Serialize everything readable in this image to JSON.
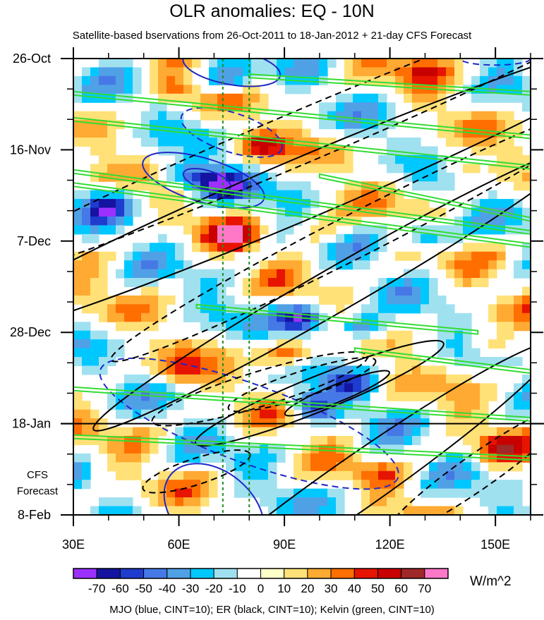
{
  "chart_data": {
    "type": "heatmap",
    "title": "OLR anomalies: EQ - 10N",
    "subtitle": "Satellite-based bservations from 26-Oct-2011 to 18-Jan-2012 + 21-day CFS Forecast",
    "x_axis": {
      "range": [
        30,
        160
      ],
      "ticks": [
        {
          "value": 30,
          "label": "30E"
        },
        {
          "value": 60,
          "label": "60E"
        },
        {
          "value": 90,
          "label": "90E"
        },
        {
          "value": 120,
          "label": "120E"
        },
        {
          "value": 150,
          "label": "150E"
        }
      ],
      "minor_ticks": [
        40,
        50,
        70,
        80,
        100,
        110,
        130,
        140,
        160
      ]
    },
    "y_axis": {
      "range_days": [
        0,
        105
      ],
      "direction": "down",
      "ticks": [
        {
          "day": 0,
          "label": "26-Oct"
        },
        {
          "day": 21,
          "label": "16-Nov"
        },
        {
          "day": 42,
          "label": "7-Dec"
        },
        {
          "day": 63,
          "label": "28-Dec"
        },
        {
          "day": 84,
          "label": "18-Jan"
        },
        {
          "day": 105,
          "label": "8-Feb"
        }
      ],
      "minor_ticks": [
        7,
        14,
        28,
        35,
        49,
        56,
        70,
        77,
        91,
        98
      ]
    },
    "observation_end_day": 84,
    "forecast_label": [
      "CFS",
      "Forecast"
    ],
    "reference_lines_lon": [
      72.5,
      80
    ],
    "colorbar": {
      "levels": [
        -70,
        -60,
        -50,
        -40,
        -30,
        -20,
        -10,
        0,
        10,
        20,
        30,
        40,
        50,
        60,
        70
      ],
      "labels": [
        "-70",
        "-60",
        "-50",
        "-40",
        "-30",
        "-20",
        "-10",
        "0",
        "10",
        "20",
        "30",
        "40",
        "50",
        "60",
        "70"
      ],
      "colors": [
        "#9b30ff",
        "#1414a0",
        "#1e3ccd",
        "#4678e6",
        "#50a0e6",
        "#00c8ff",
        "#a0e1f0",
        "#ffffff",
        "#ffffc8",
        "#ffe178",
        "#ffaa32",
        "#ff6e00",
        "#e61400",
        "#c80000",
        "#a02828",
        "#ff78c8"
      ],
      "units": "W/m^2"
    },
    "field_features": [
      {
        "lon": 72,
        "day": 29,
        "value": -70
      },
      {
        "lon": 62,
        "day": 27,
        "value": -50
      },
      {
        "lon": 82,
        "day": 20,
        "value": 50
      },
      {
        "lon": 76,
        "day": 41,
        "value": 50
      },
      {
        "lon": 90,
        "day": 68,
        "value": 50
      },
      {
        "lon": 58,
        "day": 7,
        "value": 40
      },
      {
        "lon": 130,
        "day": 2,
        "value": 40
      },
      {
        "lon": 75,
        "day": 5,
        "value": -50
      },
      {
        "lon": 95,
        "day": 60,
        "value": -70
      },
      {
        "lon": 112,
        "day": 62,
        "value": -60
      },
      {
        "lon": 130,
        "day": 41,
        "value": -50
      },
      {
        "lon": 98,
        "day": 80,
        "value": -60
      },
      {
        "lon": 110,
        "day": 75,
        "value": -40
      },
      {
        "lon": 150,
        "day": 66,
        "value": 40
      },
      {
        "lon": 60,
        "day": 72,
        "value": 30
      },
      {
        "lon": 150,
        "day": 90,
        "value": 40
      },
      {
        "lon": 40,
        "day": 34,
        "value": -40
      },
      {
        "lon": 140,
        "day": 25,
        "value": 30
      },
      {
        "lon": 100,
        "day": 40,
        "value": 30
      },
      {
        "lon": 118,
        "day": 96,
        "value": 20
      }
    ],
    "contour_series": [
      {
        "name": "MJO",
        "color": "#1e28c8",
        "cint": 10,
        "contours": [
          {
            "sign": "negative",
            "center": [
              67,
              28
            ],
            "radii": [
              18,
              5
            ],
            "angle": 17
          },
          {
            "sign": "negative",
            "center": [
              68,
              28
            ],
            "radii": [
              7,
              2.2
            ],
            "angle": 17
          },
          {
            "sign": "negative",
            "center": [
              75,
              2
            ],
            "radii": [
              14,
              4
            ],
            "angle": 10
          },
          {
            "sign": "negative",
            "center": [
              70,
              104
            ],
            "radii": [
              16,
              9
            ],
            "angle": 40
          },
          {
            "sign": "positive",
            "center": [
              75,
              17
            ],
            "radii": [
              15,
              4.5
            ],
            "angle": 18
          },
          {
            "sign": "positive",
            "center": [
              80,
              84
            ],
            "radii": [
              45,
              9
            ],
            "angle": 20
          },
          {
            "sign": "positive",
            "center": [
              150,
              0
            ],
            "radii": [
              10,
              1.5
            ],
            "angle": 0
          }
        ]
      },
      {
        "name": "ER",
        "color": "#000000",
        "cint": 10,
        "contours": [
          {
            "sign": "positive",
            "center": [
              95,
              30
            ],
            "radii": [
              110,
              7
            ],
            "angle": -23
          },
          {
            "sign": "positive",
            "center": [
              105,
              53
            ],
            "radii": [
              80,
              5
            ],
            "angle": -30
          },
          {
            "sign": "positive",
            "center": [
              100,
              77
            ],
            "radii": [
              38,
              4
            ],
            "angle": -22
          },
          {
            "sign": "positive",
            "center": [
              105,
              77
            ],
            "radii": [
              16,
              2
            ],
            "angle": -22
          },
          {
            "sign": "positive",
            "center": [
              110,
              98
            ],
            "radii": [
              70,
              6
            ],
            "angle": -35
          },
          {
            "sign": "negative",
            "center": [
              95,
              18
            ],
            "radii": [
              110,
              6
            ],
            "angle": -23
          },
          {
            "sign": "negative",
            "center": [
              112,
              40
            ],
            "radii": [
              80,
              5
            ],
            "angle": -27
          },
          {
            "sign": "negative",
            "center": [
              83,
              76
            ],
            "radii": [
              32,
              4
            ],
            "angle": -17
          },
          {
            "sign": "negative",
            "center": [
              95,
              75
            ],
            "radii": [
              22,
              3
            ],
            "angle": -18
          },
          {
            "sign": "negative",
            "center": [
              65,
              95
            ],
            "radii": [
              16,
              3
            ],
            "angle": -18
          },
          {
            "sign": "negative",
            "center": [
              145,
              95
            ],
            "radii": [
              32,
              4
            ],
            "angle": -35
          }
        ]
      },
      {
        "name": "Kelvin",
        "color": "#32dc32",
        "cint": 10,
        "contours": [
          {
            "sign": "band",
            "from": [
              30,
              8
            ],
            "to": [
              160,
              18
            ]
          },
          {
            "sign": "band",
            "from": [
              30,
              14
            ],
            "to": [
              160,
              25
            ]
          },
          {
            "sign": "band",
            "from": [
              30,
              26
            ],
            "to": [
              160,
              40
            ]
          },
          {
            "sign": "band",
            "from": [
              30,
              29
            ],
            "to": [
              160,
              43
            ]
          },
          {
            "sign": "band",
            "from": [
              80,
              4
            ],
            "to": [
              160,
              8
            ]
          },
          {
            "sign": "band",
            "from": [
              100,
              27
            ],
            "to": [
              160,
              37
            ]
          },
          {
            "sign": "band",
            "from": [
              65,
              57
            ],
            "to": [
              145,
              63
            ]
          },
          {
            "sign": "band",
            "from": [
              110,
              67
            ],
            "to": [
              160,
              72
            ]
          },
          {
            "sign": "band",
            "from": [
              30,
              76
            ],
            "to": [
              160,
              83
            ]
          },
          {
            "sign": "band",
            "from": [
              30,
              87
            ],
            "to": [
              160,
              92
            ]
          }
        ]
      }
    ],
    "legend_caption": "MJO (blue, CINT=10); ER (black, CINT=10); Kelvin (green, CINT=10)"
  }
}
